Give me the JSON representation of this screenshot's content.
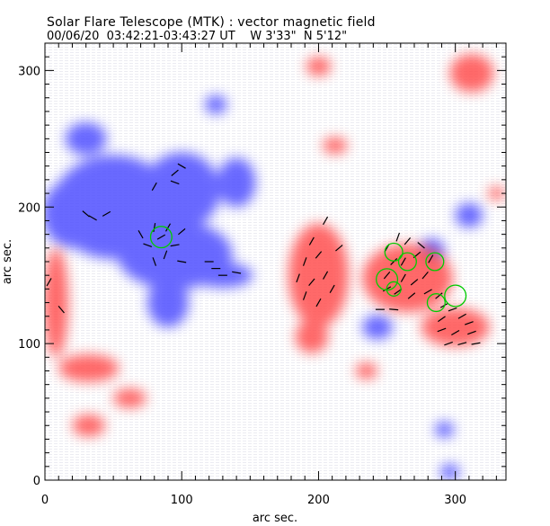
{
  "chart_data": {
    "type": "heatmap",
    "title": "Solar Flare Telescope (MTK) : vector magnetic field",
    "subtitle": {
      "date": "00/06/20",
      "time": "03:42:21-03:43:27 UT",
      "lon": "W 3'33\"",
      "lat": "N 5'12\""
    },
    "xlabel": "arc sec.",
    "ylabel": "arc sec.",
    "xlim": [
      0,
      337
    ],
    "ylim": [
      0,
      320
    ],
    "xticks": [
      0,
      100,
      200,
      300
    ],
    "yticks": [
      0,
      100,
      200,
      300
    ],
    "colors": {
      "positive": "#ff5050",
      "negative": "#5050ff",
      "vectors": "#000000",
      "contours": "#00cc00"
    },
    "negative_regions": [
      [
        50,
        200,
        45,
        38
      ],
      [
        100,
        212,
        28,
        28
      ],
      [
        95,
        165,
        42,
        25
      ],
      [
        130,
        150,
        22,
        9
      ],
      [
        20,
        195,
        22,
        25
      ],
      [
        140,
        218,
        14,
        18
      ],
      [
        90,
        130,
        15,
        18
      ],
      [
        125,
        275,
        8,
        7
      ],
      [
        243,
        112,
        11,
        9
      ],
      [
        283,
        168,
        9,
        9
      ],
      [
        310,
        194,
        10,
        9
      ],
      [
        292,
        37,
        7,
        6
      ],
      [
        296,
        6,
        7,
        6
      ],
      [
        30,
        250,
        15,
        12
      ]
    ],
    "positive_regions": [
      [
        200,
        150,
        22,
        38
      ],
      [
        265,
        148,
        33,
        25
      ],
      [
        300,
        112,
        25,
        14
      ],
      [
        8,
        130,
        9,
        40
      ],
      [
        32,
        82,
        22,
        10
      ],
      [
        62,
        60,
        12,
        7
      ],
      [
        32,
        40,
        12,
        8
      ],
      [
        312,
        298,
        16,
        14
      ],
      [
        200,
        303,
        9,
        7
      ],
      [
        212,
        245,
        9,
        6
      ],
      [
        195,
        105,
        12,
        12
      ],
      [
        235,
        80,
        8,
        6
      ],
      [
        330,
        210,
        6,
        5
      ]
    ],
    "vectors": [
      [
        85,
        178,
        30
      ],
      [
        80,
        185,
        80
      ],
      [
        90,
        185,
        60
      ],
      [
        75,
        172,
        -20
      ],
      [
        95,
        172,
        10
      ],
      [
        88,
        165,
        70
      ],
      [
        80,
        160,
        110
      ],
      [
        100,
        160,
        -10
      ],
      [
        100,
        182,
        40
      ],
      [
        70,
        180,
        120
      ],
      [
        120,
        160,
        0
      ],
      [
        125,
        155,
        0
      ],
      [
        130,
        150,
        0
      ],
      [
        140,
        152,
        -10
      ],
      [
        35,
        192,
        -30
      ],
      [
        30,
        195,
        -40
      ],
      [
        45,
        195,
        30
      ],
      [
        95,
        225,
        40
      ],
      [
        100,
        230,
        -30
      ],
      [
        95,
        218,
        -20
      ],
      [
        80,
        215,
        60
      ],
      [
        195,
        175,
        60
      ],
      [
        200,
        165,
        50
      ],
      [
        190,
        160,
        70
      ],
      [
        205,
        150,
        60
      ],
      [
        195,
        145,
        50
      ],
      [
        210,
        140,
        60
      ],
      [
        190,
        135,
        70
      ],
      [
        200,
        130,
        60
      ],
      [
        215,
        170,
        40
      ],
      [
        205,
        190,
        60
      ],
      [
        185,
        148,
        70
      ],
      [
        250,
        170,
        60
      ],
      [
        258,
        178,
        70
      ],
      [
        265,
        175,
        50
      ],
      [
        255,
        160,
        45
      ],
      [
        262,
        160,
        60
      ],
      [
        272,
        165,
        40
      ],
      [
        250,
        150,
        50
      ],
      [
        262,
        148,
        60
      ],
      [
        270,
        145,
        40
      ],
      [
        278,
        150,
        50
      ],
      [
        250,
        140,
        30
      ],
      [
        258,
        138,
        35
      ],
      [
        268,
        135,
        40
      ],
      [
        280,
        138,
        30
      ],
      [
        288,
        135,
        40
      ],
      [
        292,
        128,
        30
      ],
      [
        298,
        125,
        20
      ],
      [
        305,
        120,
        30
      ],
      [
        310,
        115,
        20
      ],
      [
        290,
        110,
        20
      ],
      [
        300,
        108,
        30
      ],
      [
        312,
        108,
        20
      ],
      [
        295,
        100,
        20
      ],
      [
        305,
        100,
        15
      ],
      [
        315,
        100,
        10
      ],
      [
        290,
        118,
        35
      ],
      [
        245,
        125,
        0
      ],
      [
        255,
        125,
        -5
      ],
      [
        282,
        162,
        60
      ],
      [
        275,
        172,
        -40
      ],
      [
        3,
        145,
        60
      ],
      [
        12,
        125,
        -50
      ]
    ],
    "contours": [
      [
        85,
        178,
        6
      ],
      [
        255,
        167,
        5
      ],
      [
        250,
        147,
        6
      ],
      [
        265,
        160,
        5
      ],
      [
        285,
        160,
        5
      ],
      [
        300,
        135,
        6
      ],
      [
        286,
        130,
        5
      ],
      [
        255,
        140,
        4
      ]
    ]
  }
}
